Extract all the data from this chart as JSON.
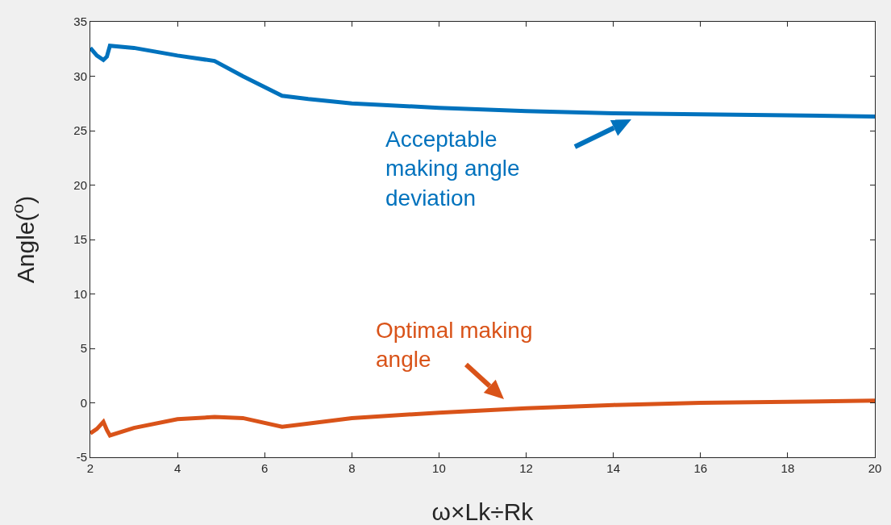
{
  "chart_data": {
    "type": "line",
    "xlabel": "ω×Lk÷Rk",
    "ylabel": "Angle($^{o}$)",
    "xlim": [
      2,
      20
    ],
    "xticks": [
      2,
      4,
      6,
      8,
      10,
      12,
      14,
      16,
      18,
      20
    ],
    "ylim": [
      -5,
      35
    ],
    "yticks": [
      -5,
      0,
      5,
      10,
      15,
      20,
      25,
      30,
      35
    ],
    "grid": false,
    "marker": "none",
    "line_style": "solid",
    "x": [
      2,
      2.15,
      2.3,
      2.38,
      2.45,
      3,
      4,
      4.85,
      5.5,
      6.4,
      7,
      8,
      10,
      12,
      14,
      16,
      18,
      20
    ],
    "series": [
      {
        "color": "#0072bd",
        "values": [
          32.6,
          31.9,
          31.5,
          31.8,
          32.8,
          32.6,
          31.9,
          31.4,
          30,
          28.2,
          27.9,
          27.5,
          27.1,
          26.8,
          26.6,
          26.5,
          26.4,
          26.3
        ]
      },
      {
        "color": "#d95319",
        "values": [
          -2.8,
          -2.4,
          -1.75,
          -2.5,
          -3.0,
          -2.3,
          -1.5,
          -1.3,
          -1.4,
          -2.2,
          -1.9,
          -1.4,
          -0.9,
          -0.5,
          -0.2,
          0.0,
          0.1,
          0.2
        ]
      }
    ],
    "annotations": [
      "Acceptable\nmaking angle\ndeviation",
      "Optimal making\nangle"
    ]
  }
}
